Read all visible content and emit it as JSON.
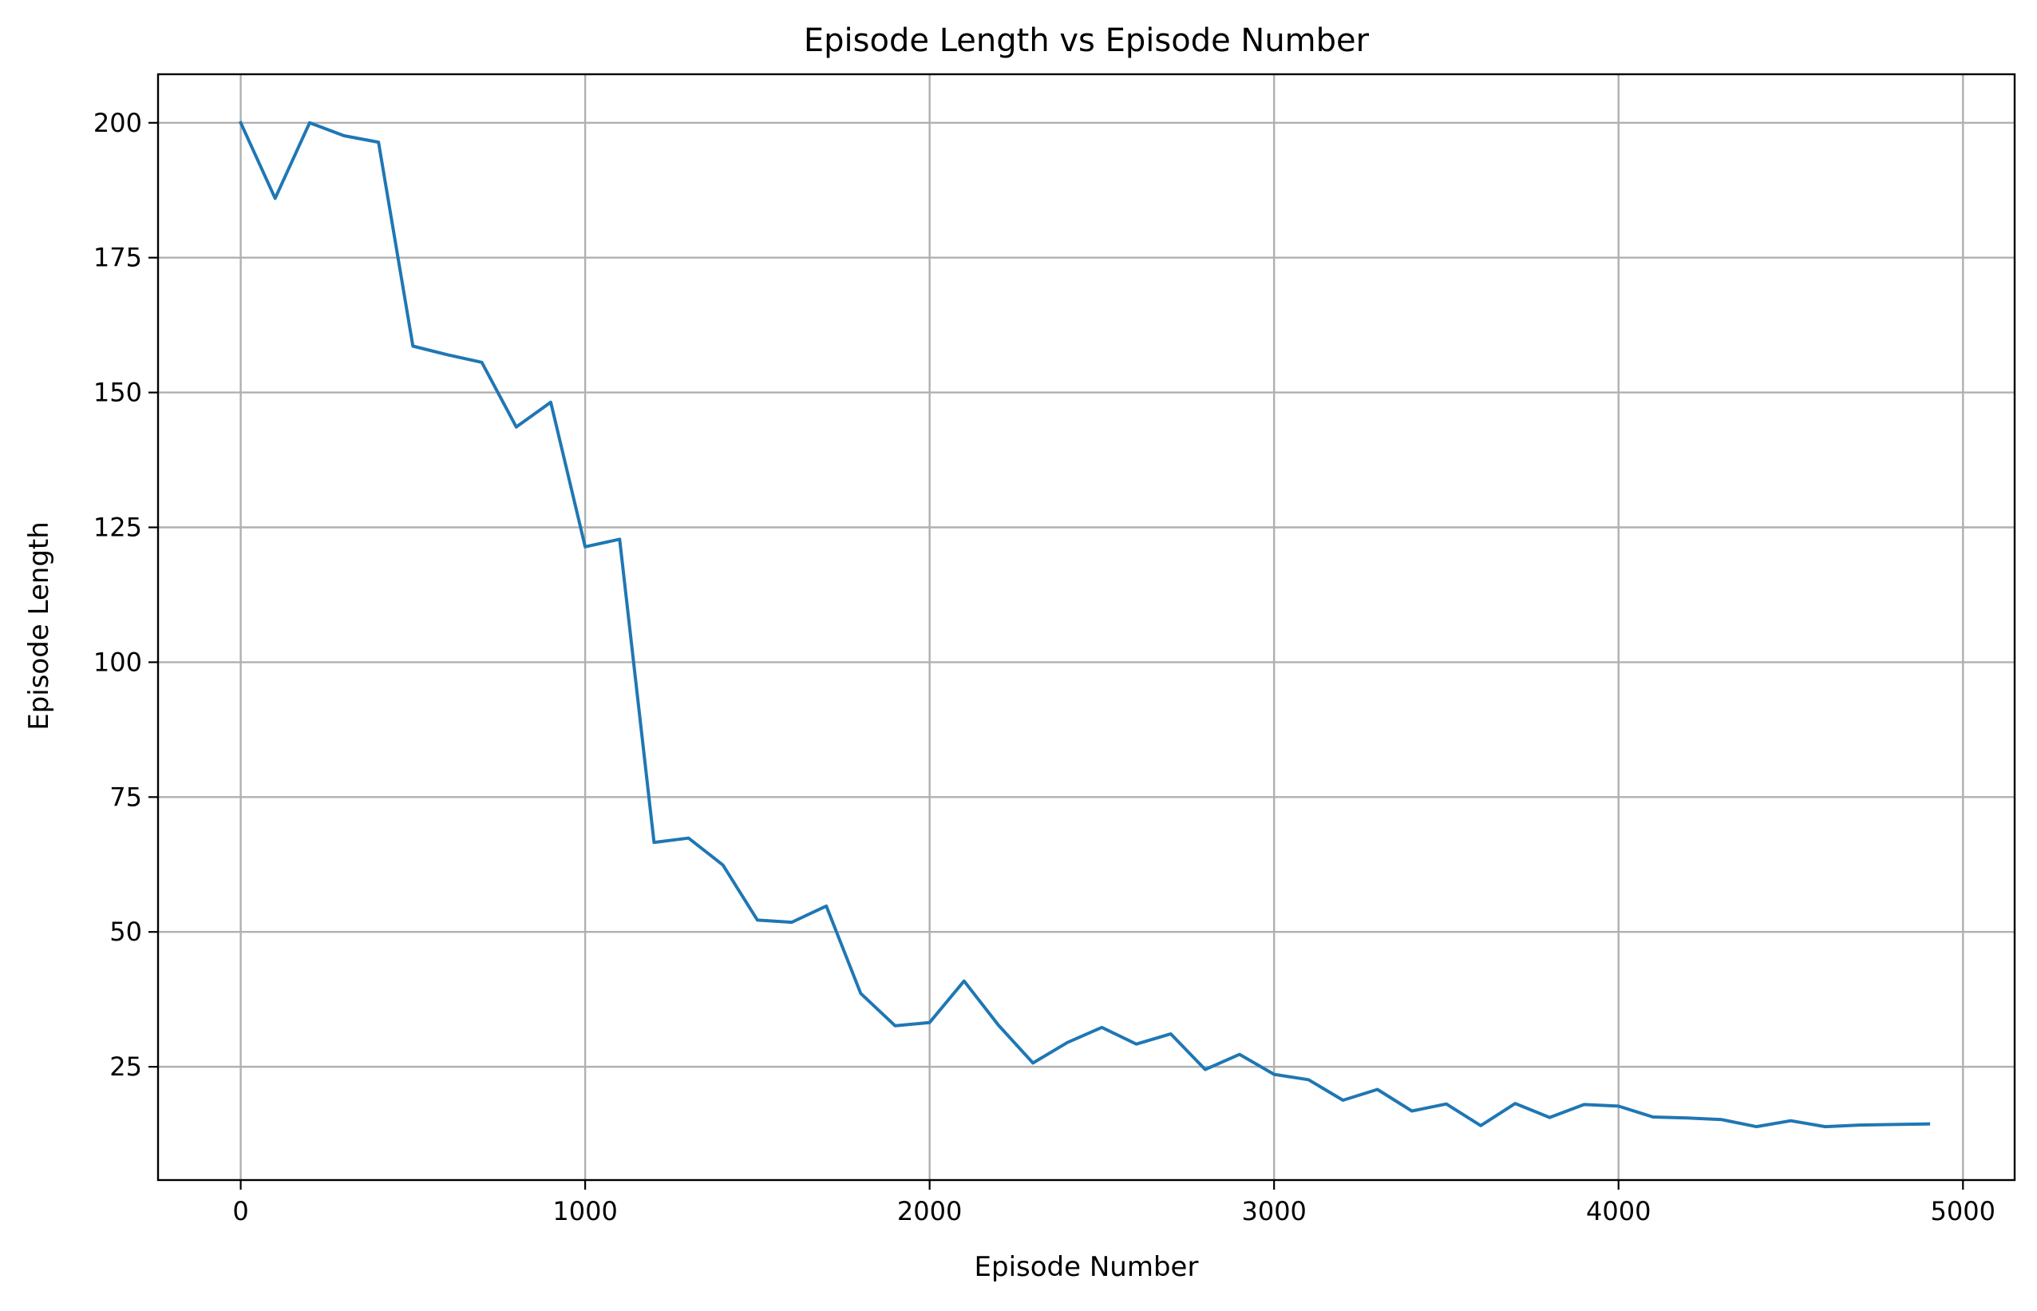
{
  "chart_data": {
    "type": "line",
    "title": "Episode Length vs Episode Number",
    "xlabel": "Episode Number",
    "ylabel": "Episode Length",
    "xlim": [
      -240,
      5150
    ],
    "ylim": [
      4,
      209
    ],
    "xticks": [
      0,
      1000,
      2000,
      3000,
      4000,
      5000
    ],
    "yticks": [
      25,
      50,
      75,
      100,
      125,
      150,
      175,
      200
    ],
    "xtick_labels": [
      "0",
      "1000",
      "2000",
      "3000",
      "4000",
      "5000"
    ],
    "ytick_labels": [
      "25",
      "50",
      "75",
      "100",
      "125",
      "150",
      "175",
      "200"
    ],
    "grid": true,
    "series": [
      {
        "color": "#1f77b4",
        "x": [
          0,
          100,
          200,
          300,
          400,
          500,
          600,
          700,
          800,
          900,
          1000,
          1100,
          1200,
          1300,
          1400,
          1500,
          1600,
          1700,
          1800,
          1900,
          2000,
          2100,
          2200,
          2300,
          2400,
          2500,
          2600,
          2700,
          2800,
          2900,
          3000,
          3100,
          3200,
          3300,
          3400,
          3500,
          3600,
          3700,
          3800,
          3900,
          4000,
          4100,
          4200,
          4300,
          4400,
          4500,
          4600,
          4700,
          4800,
          4900
        ],
        "y": [
          200,
          186,
          200,
          197.6,
          196.4,
          158.6,
          157,
          155.6,
          143.6,
          148.2,
          121.4,
          122.8,
          66.6,
          67.4,
          62.4,
          52.2,
          51.8,
          54.8,
          38.6,
          32.6,
          33.2,
          40.9,
          32.7,
          25.7,
          29.5,
          32.3,
          29.2,
          31.1,
          24.5,
          27.3,
          23.6,
          22.6,
          18.8,
          20.8,
          16.8,
          18.1,
          14.1,
          18.2,
          15.6,
          18,
          17.7,
          15.7,
          15.5,
          15.2,
          13.9,
          15,
          13.9,
          14.2,
          14.3,
          14.4
        ]
      }
    ]
  }
}
